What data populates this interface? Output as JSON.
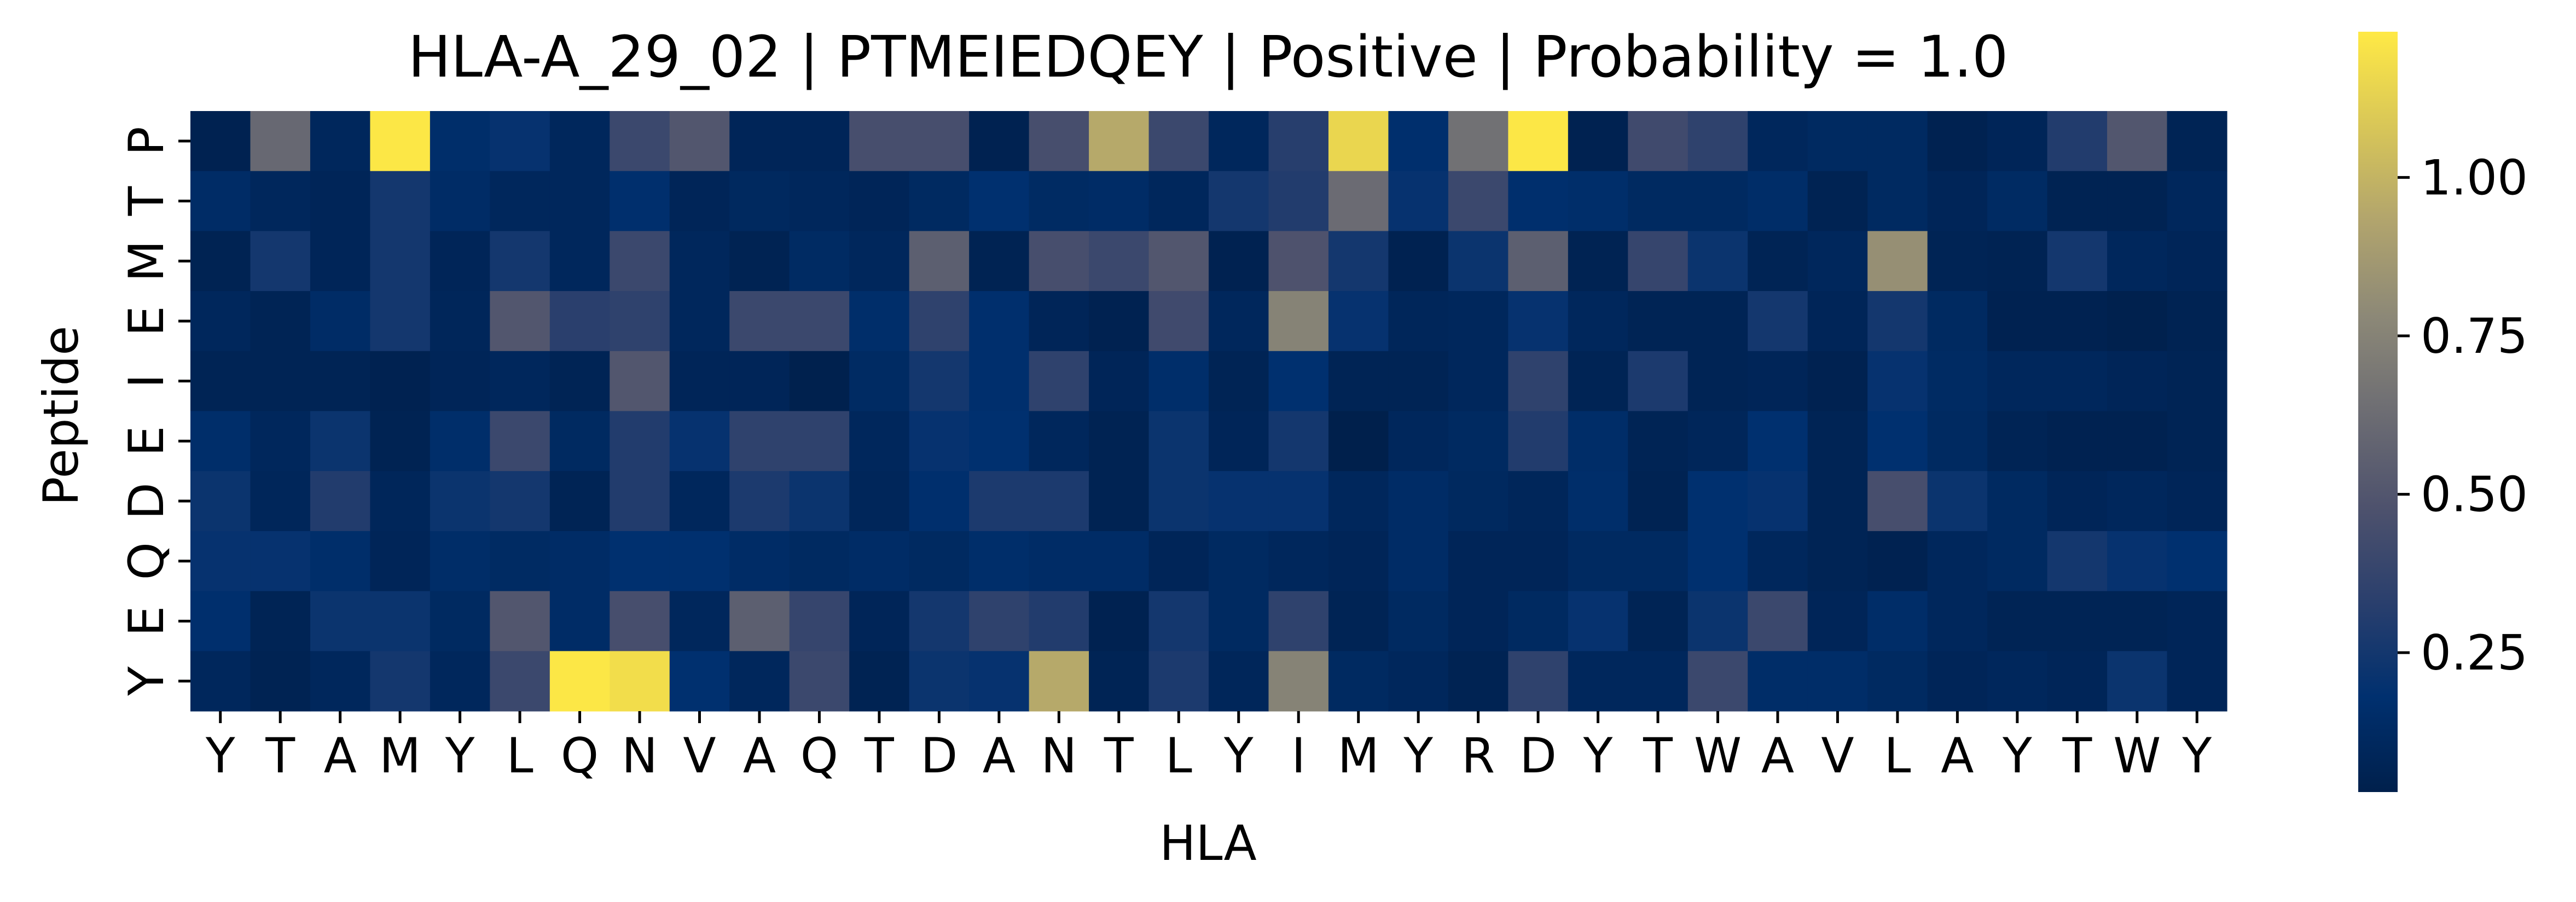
{
  "chart_data": {
    "type": "heatmap",
    "title": "HLA-A_29_02 | PTMEIEDQEY | Positive | Probability = 1.0",
    "xlabel": "HLA",
    "ylabel": "Peptide",
    "x_categories": [
      "Y",
      "T",
      "A",
      "M",
      "Y",
      "L",
      "Q",
      "N",
      "V",
      "A",
      "Q",
      "T",
      "D",
      "A",
      "N",
      "T",
      "L",
      "Y",
      "I",
      "M",
      "Y",
      "R",
      "D",
      "Y",
      "T",
      "W",
      "A",
      "V",
      "L",
      "A",
      "Y",
      "T",
      "W",
      "Y"
    ],
    "y_categories": [
      "P",
      "T",
      "M",
      "E",
      "I",
      "E",
      "D",
      "Q",
      "E",
      "Y"
    ],
    "colormap": "cividis",
    "colorbar": {
      "range": [
        0.03,
        1.23
      ],
      "ticks": [
        0.25,
        0.5,
        0.75,
        1.0
      ],
      "tick_labels": [
        "0.25",
        "0.50",
        "0.75",
        "1.00"
      ]
    },
    "values": [
      [
        0.05,
        0.6,
        0.1,
        1.22,
        0.16,
        0.2,
        0.1,
        0.4,
        0.5,
        0.08,
        0.08,
        0.45,
        0.45,
        0.05,
        0.45,
        0.95,
        0.4,
        0.1,
        0.32,
        1.15,
        0.17,
        0.65,
        1.22,
        0.05,
        0.42,
        0.35,
        0.1,
        0.12,
        0.12,
        0.05,
        0.08,
        0.3,
        0.5,
        0.07
      ],
      [
        0.14,
        0.1,
        0.08,
        0.25,
        0.14,
        0.1,
        0.1,
        0.17,
        0.08,
        0.11,
        0.1,
        0.08,
        0.12,
        0.18,
        0.13,
        0.14,
        0.1,
        0.25,
        0.3,
        0.62,
        0.2,
        0.4,
        0.17,
        0.16,
        0.12,
        0.12,
        0.15,
        0.06,
        0.12,
        0.08,
        0.13,
        0.06,
        0.06,
        0.1
      ],
      [
        0.06,
        0.25,
        0.08,
        0.25,
        0.08,
        0.25,
        0.1,
        0.4,
        0.1,
        0.06,
        0.13,
        0.1,
        0.55,
        0.06,
        0.45,
        0.4,
        0.5,
        0.05,
        0.48,
        0.25,
        0.05,
        0.22,
        0.55,
        0.06,
        0.38,
        0.22,
        0.07,
        0.1,
        0.82,
        0.07,
        0.06,
        0.25,
        0.1,
        0.08
      ],
      [
        0.1,
        0.07,
        0.14,
        0.25,
        0.09,
        0.5,
        0.33,
        0.35,
        0.1,
        0.4,
        0.4,
        0.16,
        0.35,
        0.17,
        0.08,
        0.05,
        0.42,
        0.1,
        0.75,
        0.2,
        0.09,
        0.1,
        0.2,
        0.1,
        0.07,
        0.07,
        0.25,
        0.08,
        0.25,
        0.12,
        0.05,
        0.05,
        0.04,
        0.06
      ],
      [
        0.07,
        0.07,
        0.07,
        0.05,
        0.08,
        0.1,
        0.07,
        0.5,
        0.08,
        0.08,
        0.04,
        0.13,
        0.25,
        0.17,
        0.35,
        0.08,
        0.16,
        0.07,
        0.18,
        0.07,
        0.07,
        0.1,
        0.35,
        0.07,
        0.28,
        0.07,
        0.08,
        0.05,
        0.2,
        0.13,
        0.1,
        0.1,
        0.08,
        0.07
      ],
      [
        0.16,
        0.1,
        0.22,
        0.06,
        0.16,
        0.4,
        0.12,
        0.3,
        0.2,
        0.35,
        0.35,
        0.1,
        0.2,
        0.18,
        0.1,
        0.06,
        0.22,
        0.08,
        0.25,
        0.03,
        0.1,
        0.12,
        0.3,
        0.15,
        0.07,
        0.09,
        0.18,
        0.07,
        0.18,
        0.12,
        0.07,
        0.05,
        0.05,
        0.07
      ],
      [
        0.22,
        0.09,
        0.3,
        0.09,
        0.22,
        0.25,
        0.07,
        0.3,
        0.1,
        0.28,
        0.22,
        0.09,
        0.17,
        0.28,
        0.28,
        0.06,
        0.22,
        0.2,
        0.2,
        0.1,
        0.14,
        0.11,
        0.09,
        0.16,
        0.06,
        0.18,
        0.2,
        0.07,
        0.45,
        0.22,
        0.12,
        0.08,
        0.1,
        0.08
      ],
      [
        0.2,
        0.2,
        0.16,
        0.08,
        0.15,
        0.13,
        0.14,
        0.18,
        0.18,
        0.14,
        0.12,
        0.14,
        0.12,
        0.16,
        0.14,
        0.14,
        0.08,
        0.12,
        0.1,
        0.08,
        0.14,
        0.08,
        0.08,
        0.12,
        0.12,
        0.18,
        0.1,
        0.07,
        0.05,
        0.1,
        0.12,
        0.25,
        0.2,
        0.18
      ],
      [
        0.17,
        0.07,
        0.22,
        0.22,
        0.12,
        0.5,
        0.14,
        0.45,
        0.1,
        0.55,
        0.38,
        0.08,
        0.25,
        0.35,
        0.3,
        0.05,
        0.25,
        0.12,
        0.35,
        0.07,
        0.12,
        0.08,
        0.12,
        0.2,
        0.07,
        0.22,
        0.4,
        0.08,
        0.15,
        0.1,
        0.07,
        0.07,
        0.07,
        0.08
      ],
      [
        0.1,
        0.06,
        0.1,
        0.25,
        0.1,
        0.4,
        1.22,
        1.18,
        0.18,
        0.1,
        0.4,
        0.06,
        0.22,
        0.2,
        0.95,
        0.07,
        0.28,
        0.09,
        0.75,
        0.12,
        0.1,
        0.06,
        0.35,
        0.1,
        0.1,
        0.4,
        0.15,
        0.15,
        0.12,
        0.08,
        0.1,
        0.08,
        0.22,
        0.08
      ]
    ]
  }
}
